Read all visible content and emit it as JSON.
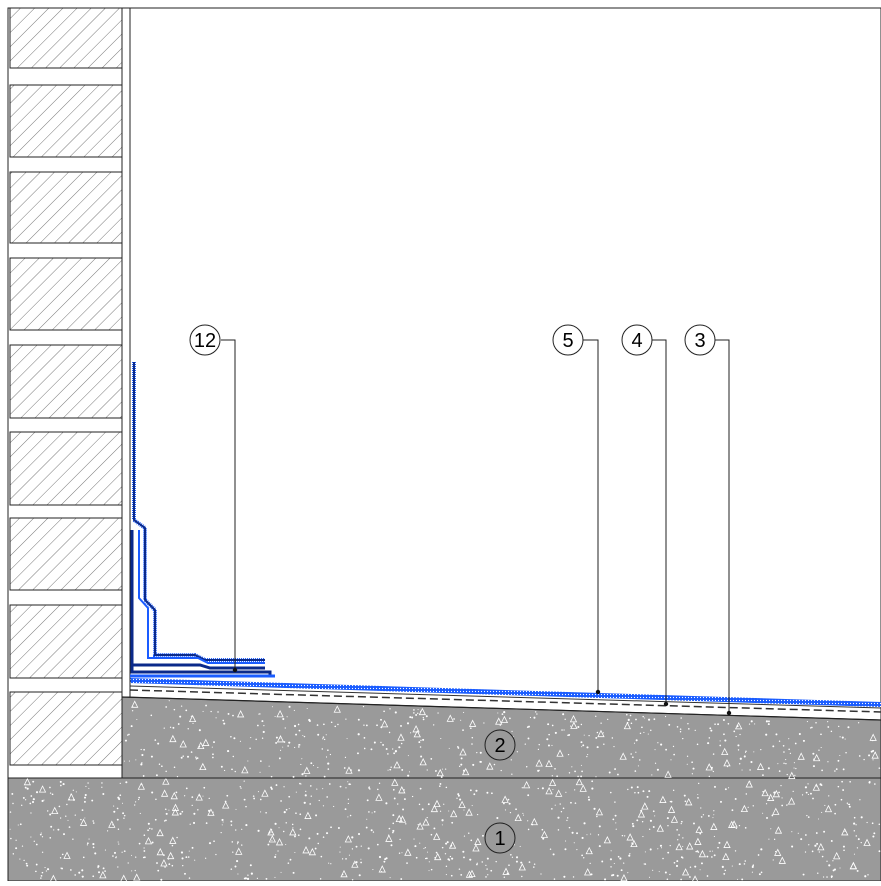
{
  "callouts": [
    {
      "id": "12",
      "label": "12"
    },
    {
      "id": "5",
      "label": "5"
    },
    {
      "id": "4",
      "label": "4"
    },
    {
      "id": "3",
      "label": "3"
    },
    {
      "id": "2",
      "label": "2"
    },
    {
      "id": "1",
      "label": "1"
    }
  ],
  "colors": {
    "membrane_blue": "#1a5cff",
    "membrane_dark": "#0b2a8a",
    "concrete": "#9a9a9a",
    "brick_fill": "#ffffff",
    "line": "#222222"
  }
}
